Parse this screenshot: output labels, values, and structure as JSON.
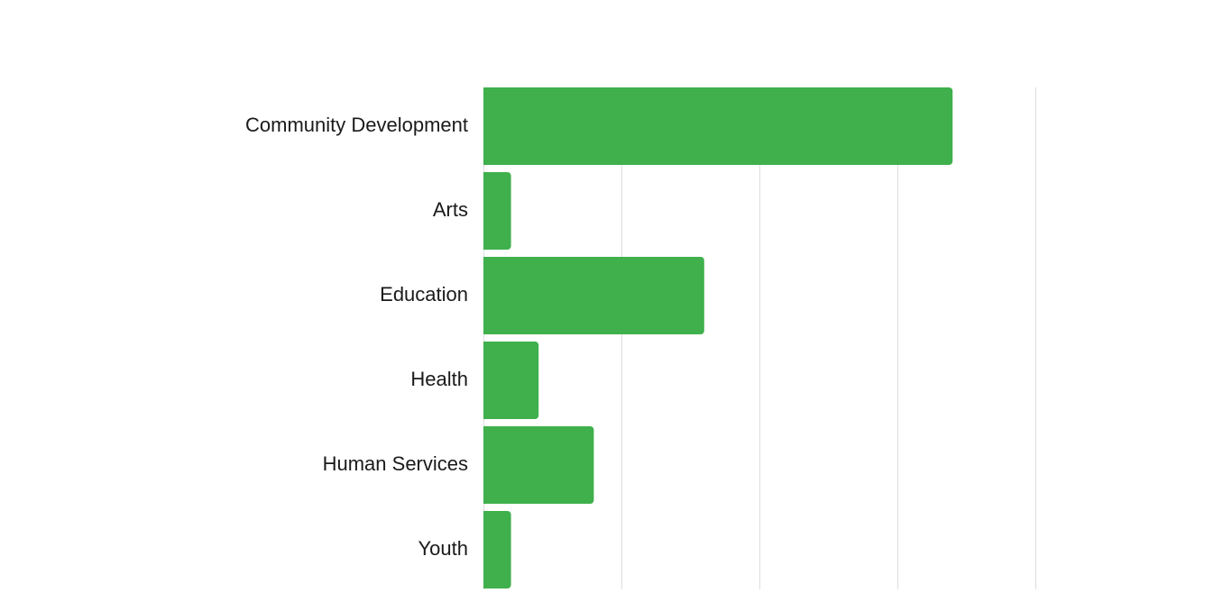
{
  "chart_data": {
    "type": "bar",
    "orientation": "horizontal",
    "categories": [
      "Community Development",
      "Arts",
      "Education",
      "Health",
      "Human Services",
      "Youth"
    ],
    "values": [
      17,
      1,
      8,
      2,
      4,
      1
    ],
    "xlim": [
      0,
      20
    ],
    "grid": true,
    "axis_tick_labels_visible": false,
    "colors": {
      "bar": "#3fb04c",
      "grid": "#dddddd",
      "label": "#1a1a1a"
    }
  }
}
